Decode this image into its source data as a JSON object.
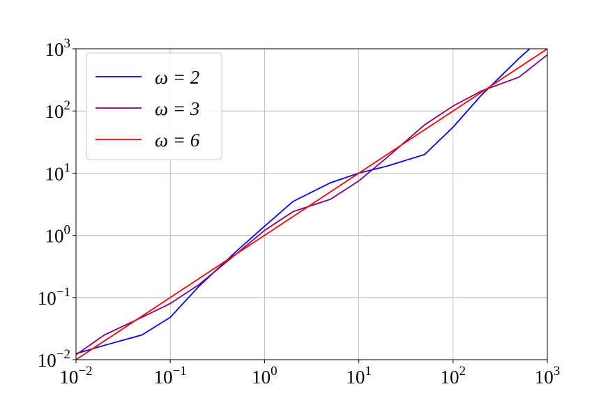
{
  "chart_data": {
    "type": "line",
    "xscale": "log",
    "yscale": "log",
    "grid": true,
    "legend": "upper left",
    "xlim": [
      0.01,
      1000
    ],
    "ylim": [
      0.01,
      1000
    ],
    "xticks": [
      {
        "value": 0.01,
        "label": "10",
        "exponent": "−2"
      },
      {
        "value": 0.1,
        "label": "10",
        "exponent": "−1"
      },
      {
        "value": 1,
        "label": "10",
        "exponent": "0"
      },
      {
        "value": 10,
        "label": "10",
        "exponent": "1"
      },
      {
        "value": 100,
        "label": "10",
        "exponent": "2"
      },
      {
        "value": 1000,
        "label": "10",
        "exponent": "3"
      }
    ],
    "yticks": [
      {
        "value": 0.01,
        "label": "10",
        "exponent": "−2"
      },
      {
        "value": 0.1,
        "label": "10",
        "exponent": "−1"
      },
      {
        "value": 1,
        "label": "10",
        "exponent": "0"
      },
      {
        "value": 10,
        "label": "10",
        "exponent": "1"
      },
      {
        "value": 100,
        "label": "10",
        "exponent": "2"
      },
      {
        "value": 1000,
        "label": "10",
        "exponent": "3"
      }
    ],
    "series": [
      {
        "name": "ω = 2",
        "color": "#0000ff",
        "x": [
          0.01,
          0.02,
          0.05,
          0.1,
          0.2,
          0.5,
          1,
          2,
          5,
          10,
          20,
          50,
          100,
          200,
          500,
          650
        ],
        "values": [
          0.0125,
          0.017,
          0.025,
          0.048,
          0.15,
          0.55,
          1.4,
          3.5,
          7,
          10,
          13,
          20,
          55,
          180,
          700,
          1000
        ]
      },
      {
        "name": "ω = 3",
        "color": "#800080",
        "x": [
          0.01,
          0.02,
          0.05,
          0.1,
          0.2,
          0.5,
          1,
          2,
          5,
          10,
          20,
          50,
          100,
          200,
          500,
          1000
        ],
        "values": [
          0.012,
          0.025,
          0.048,
          0.08,
          0.16,
          0.5,
          1.2,
          2.4,
          3.8,
          7.5,
          18,
          60,
          120,
          210,
          350,
          800
        ]
      },
      {
        "name": "ω = 6",
        "color": "#ff0000",
        "x": [
          0.01,
          0.1,
          1,
          10,
          100,
          1000
        ],
        "values": [
          0.01,
          0.1,
          1,
          10,
          100,
          1000
        ]
      }
    ]
  }
}
